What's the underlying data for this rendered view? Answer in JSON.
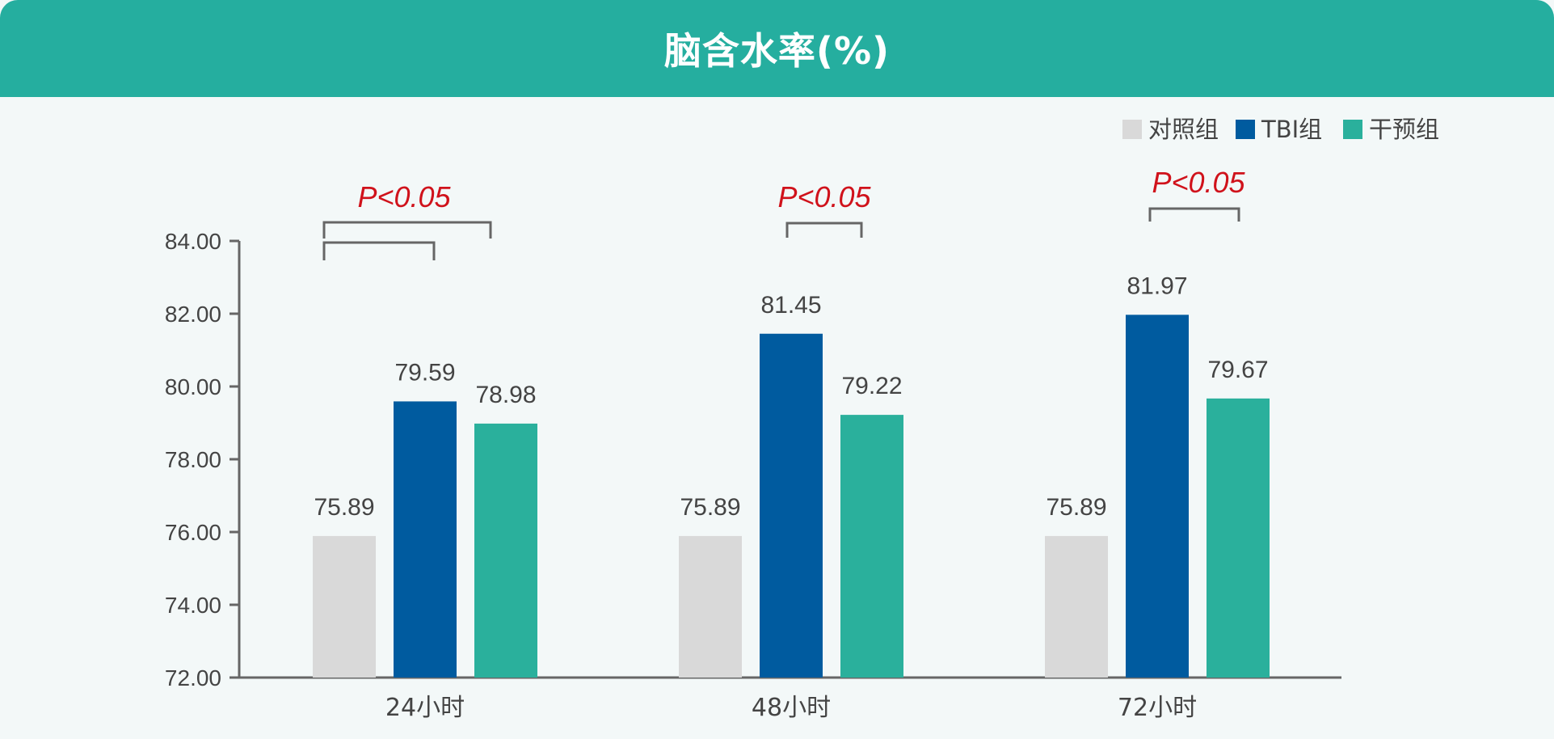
{
  "header": {
    "title": "脑含水率(%)"
  },
  "colors": {
    "header_bg": "#25ae9f",
    "control": "#d9d9d9",
    "tbi": "#005b9f",
    "intervention": "#2ab09c",
    "significance": "#d0121b",
    "axis": "#666666"
  },
  "chart_data": {
    "type": "bar",
    "title": "脑含水率(%)",
    "categories": [
      "24小时",
      "48小时",
      "72小时"
    ],
    "series": [
      {
        "name": "对照组",
        "values": [
          75.89,
          75.89,
          75.89
        ],
        "color": "#d9d9d9"
      },
      {
        "name": "TBI组",
        "values": [
          79.59,
          81.45,
          81.97
        ],
        "color": "#005b9f"
      },
      {
        "name": "干预组",
        "values": [
          78.98,
          79.22,
          79.67
        ],
        "color": "#2ab09c"
      }
    ],
    "value_labels": [
      [
        "75.89",
        "79.59",
        "78.98"
      ],
      [
        "75.89",
        "81.45",
        "79.22"
      ],
      [
        "75.89",
        "81.97",
        "79.67"
      ]
    ],
    "ylim": [
      72,
      84
    ],
    "yticks": [
      "72.00",
      "74.00",
      "76.00",
      "78.00",
      "80.00",
      "82.00",
      "84.00"
    ],
    "xlabel": "",
    "ylabel": "",
    "legend_position": "top-right",
    "significance": [
      {
        "category": "24小时",
        "label": "P<0.05",
        "pairs": [
          [
            "对照组",
            "干预组"
          ],
          [
            "对照组",
            "TBI组"
          ]
        ]
      },
      {
        "category": "48小时",
        "label": "P<0.05",
        "pairs": [
          [
            "TBI组",
            "干预组"
          ]
        ]
      },
      {
        "category": "72小时",
        "label": "P<0.05",
        "pairs": [
          [
            "TBI组",
            "干预组"
          ]
        ]
      }
    ]
  }
}
